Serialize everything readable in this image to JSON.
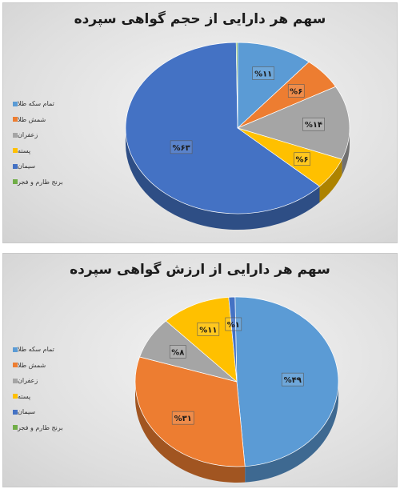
{
  "chart_data": [
    {
      "type": "pie",
      "title": "سهم هر دارایی از حجم گواهی سپرده",
      "categories": [
        "تمام سکه طلا",
        "شمش طلا",
        "زعفران",
        "پسته",
        "سیمان",
        "برنج طارم و فجر"
      ],
      "values": [
        11,
        6,
        14,
        6,
        63,
        0.2
      ],
      "data_labels": [
        "%۱۱",
        "%۶",
        "%۱۴",
        "%۶",
        "%۶۳",
        ""
      ],
      "colors": [
        "#5b9bd5",
        "#ed7d31",
        "#a5a5a5",
        "#ffc000",
        "#4472c4",
        "#70ad47"
      ],
      "legend_position": "left",
      "style": "3d"
    },
    {
      "type": "pie",
      "title": "سهم هر دارایی از ارزش گواهی سپرده",
      "categories": [
        "تمام سکه طلا",
        "شمش طلا",
        "زعفران",
        "پسته",
        "سیمان",
        "برنج طارم و فجر"
      ],
      "values": [
        49,
        31,
        8,
        11,
        1,
        0
      ],
      "data_labels": [
        "%۴۹",
        "%۳۱",
        "%۸",
        "%۱۱",
        "%۱",
        ""
      ],
      "colors": [
        "#5b9bd5",
        "#ed7d31",
        "#a5a5a5",
        "#ffc000",
        "#4472c4",
        "#70ad47"
      ],
      "legend_position": "left",
      "style": "3d"
    }
  ]
}
